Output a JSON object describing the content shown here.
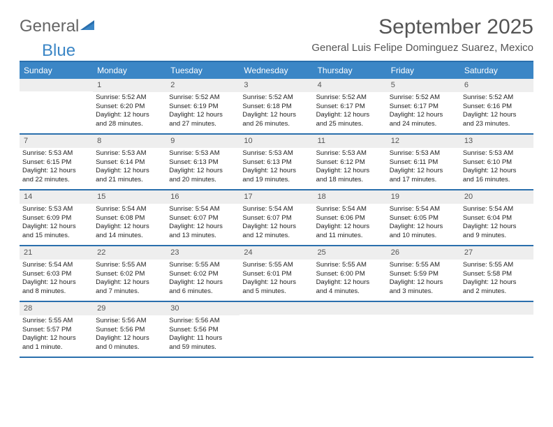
{
  "brand": {
    "part1": "General",
    "part2": "Blue"
  },
  "title": "September 2025",
  "subtitle": "General Luis Felipe Dominguez Suarez, Mexico",
  "colors": {
    "header_bg": "#3b86c6",
    "border": "#2a6fad",
    "daynum_bg": "#eeeeee",
    "text": "#333333",
    "background": "#ffffff"
  },
  "weekdays": [
    "Sunday",
    "Monday",
    "Tuesday",
    "Wednesday",
    "Thursday",
    "Friday",
    "Saturday"
  ],
  "weeks": [
    [
      {
        "day": "",
        "lines": []
      },
      {
        "day": "1",
        "lines": [
          "Sunrise: 5:52 AM",
          "Sunset: 6:20 PM",
          "Daylight: 12 hours",
          "and 28 minutes."
        ]
      },
      {
        "day": "2",
        "lines": [
          "Sunrise: 5:52 AM",
          "Sunset: 6:19 PM",
          "Daylight: 12 hours",
          "and 27 minutes."
        ]
      },
      {
        "day": "3",
        "lines": [
          "Sunrise: 5:52 AM",
          "Sunset: 6:18 PM",
          "Daylight: 12 hours",
          "and 26 minutes."
        ]
      },
      {
        "day": "4",
        "lines": [
          "Sunrise: 5:52 AM",
          "Sunset: 6:17 PM",
          "Daylight: 12 hours",
          "and 25 minutes."
        ]
      },
      {
        "day": "5",
        "lines": [
          "Sunrise: 5:52 AM",
          "Sunset: 6:17 PM",
          "Daylight: 12 hours",
          "and 24 minutes."
        ]
      },
      {
        "day": "6",
        "lines": [
          "Sunrise: 5:52 AM",
          "Sunset: 6:16 PM",
          "Daylight: 12 hours",
          "and 23 minutes."
        ]
      }
    ],
    [
      {
        "day": "7",
        "lines": [
          "Sunrise: 5:53 AM",
          "Sunset: 6:15 PM",
          "Daylight: 12 hours",
          "and 22 minutes."
        ]
      },
      {
        "day": "8",
        "lines": [
          "Sunrise: 5:53 AM",
          "Sunset: 6:14 PM",
          "Daylight: 12 hours",
          "and 21 minutes."
        ]
      },
      {
        "day": "9",
        "lines": [
          "Sunrise: 5:53 AM",
          "Sunset: 6:13 PM",
          "Daylight: 12 hours",
          "and 20 minutes."
        ]
      },
      {
        "day": "10",
        "lines": [
          "Sunrise: 5:53 AM",
          "Sunset: 6:13 PM",
          "Daylight: 12 hours",
          "and 19 minutes."
        ]
      },
      {
        "day": "11",
        "lines": [
          "Sunrise: 5:53 AM",
          "Sunset: 6:12 PM",
          "Daylight: 12 hours",
          "and 18 minutes."
        ]
      },
      {
        "day": "12",
        "lines": [
          "Sunrise: 5:53 AM",
          "Sunset: 6:11 PM",
          "Daylight: 12 hours",
          "and 17 minutes."
        ]
      },
      {
        "day": "13",
        "lines": [
          "Sunrise: 5:53 AM",
          "Sunset: 6:10 PM",
          "Daylight: 12 hours",
          "and 16 minutes."
        ]
      }
    ],
    [
      {
        "day": "14",
        "lines": [
          "Sunrise: 5:53 AM",
          "Sunset: 6:09 PM",
          "Daylight: 12 hours",
          "and 15 minutes."
        ]
      },
      {
        "day": "15",
        "lines": [
          "Sunrise: 5:54 AM",
          "Sunset: 6:08 PM",
          "Daylight: 12 hours",
          "and 14 minutes."
        ]
      },
      {
        "day": "16",
        "lines": [
          "Sunrise: 5:54 AM",
          "Sunset: 6:07 PM",
          "Daylight: 12 hours",
          "and 13 minutes."
        ]
      },
      {
        "day": "17",
        "lines": [
          "Sunrise: 5:54 AM",
          "Sunset: 6:07 PM",
          "Daylight: 12 hours",
          "and 12 minutes."
        ]
      },
      {
        "day": "18",
        "lines": [
          "Sunrise: 5:54 AM",
          "Sunset: 6:06 PM",
          "Daylight: 12 hours",
          "and 11 minutes."
        ]
      },
      {
        "day": "19",
        "lines": [
          "Sunrise: 5:54 AM",
          "Sunset: 6:05 PM",
          "Daylight: 12 hours",
          "and 10 minutes."
        ]
      },
      {
        "day": "20",
        "lines": [
          "Sunrise: 5:54 AM",
          "Sunset: 6:04 PM",
          "Daylight: 12 hours",
          "and 9 minutes."
        ]
      }
    ],
    [
      {
        "day": "21",
        "lines": [
          "Sunrise: 5:54 AM",
          "Sunset: 6:03 PM",
          "Daylight: 12 hours",
          "and 8 minutes."
        ]
      },
      {
        "day": "22",
        "lines": [
          "Sunrise: 5:55 AM",
          "Sunset: 6:02 PM",
          "Daylight: 12 hours",
          "and 7 minutes."
        ]
      },
      {
        "day": "23",
        "lines": [
          "Sunrise: 5:55 AM",
          "Sunset: 6:02 PM",
          "Daylight: 12 hours",
          "and 6 minutes."
        ]
      },
      {
        "day": "24",
        "lines": [
          "Sunrise: 5:55 AM",
          "Sunset: 6:01 PM",
          "Daylight: 12 hours",
          "and 5 minutes."
        ]
      },
      {
        "day": "25",
        "lines": [
          "Sunrise: 5:55 AM",
          "Sunset: 6:00 PM",
          "Daylight: 12 hours",
          "and 4 minutes."
        ]
      },
      {
        "day": "26",
        "lines": [
          "Sunrise: 5:55 AM",
          "Sunset: 5:59 PM",
          "Daylight: 12 hours",
          "and 3 minutes."
        ]
      },
      {
        "day": "27",
        "lines": [
          "Sunrise: 5:55 AM",
          "Sunset: 5:58 PM",
          "Daylight: 12 hours",
          "and 2 minutes."
        ]
      }
    ],
    [
      {
        "day": "28",
        "lines": [
          "Sunrise: 5:55 AM",
          "Sunset: 5:57 PM",
          "Daylight: 12 hours",
          "and 1 minute."
        ]
      },
      {
        "day": "29",
        "lines": [
          "Sunrise: 5:56 AM",
          "Sunset: 5:56 PM",
          "Daylight: 12 hours",
          "and 0 minutes."
        ]
      },
      {
        "day": "30",
        "lines": [
          "Sunrise: 5:56 AM",
          "Sunset: 5:56 PM",
          "Daylight: 11 hours",
          "and 59 minutes."
        ]
      },
      {
        "day": "",
        "lines": []
      },
      {
        "day": "",
        "lines": []
      },
      {
        "day": "",
        "lines": []
      },
      {
        "day": "",
        "lines": []
      }
    ]
  ]
}
